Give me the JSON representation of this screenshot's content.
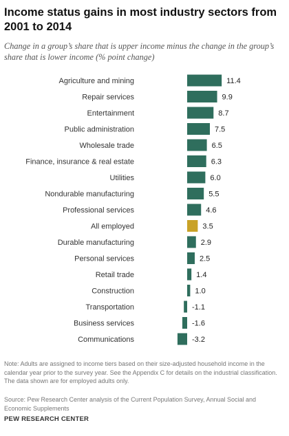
{
  "title": "Income status gains in most industry sectors from 2001 to 2014",
  "subtitle": "Change in a group’s share that is upper income minus the change in the group’s share that is lower income (% point change)",
  "note": "Note: Adults are assigned to income tiers based on their size-adjusted household income in the calendar year prior to the survey year. See the Appendix C for details on the industrial classification. The data shown are for employed adults only.",
  "source": "Source: Pew Research Center analysis of the Current Population Survey, Annual Social and Economic Supplements",
  "brand": "PEW RESEARCH CENTER",
  "colors": {
    "bar": "#2f6e5d",
    "highlight": "#c9a227"
  },
  "chart_data": {
    "type": "bar",
    "orientation": "horizontal",
    "categories": [
      "Agriculture and mining",
      "Repair services",
      "Entertainment",
      "Public administration",
      "Wholesale trade",
      "Finance, insurance & real estate",
      "Utilities",
      "Nondurable manufacturing",
      "Professional services",
      "All employed",
      "Durable manufacturing",
      "Personal services",
      "Retail trade",
      "Construction",
      "Transportation",
      "Business services",
      "Communications"
    ],
    "values": [
      11.4,
      9.9,
      8.7,
      7.5,
      6.5,
      6.3,
      6.0,
      5.5,
      4.6,
      3.5,
      2.9,
      2.5,
      1.4,
      1.0,
      -1.1,
      -1.6,
      -3.2
    ],
    "value_labels": [
      "11.4",
      "9.9",
      "8.7",
      "7.5",
      "6.5",
      "6.3",
      "6.0",
      "5.5",
      "4.6",
      "3.5",
      "2.9",
      "2.5",
      "1.4",
      "1.0",
      "-1.1",
      "-1.6",
      "-3.2"
    ],
    "highlight_category": "All employed",
    "title": "Income status gains in most industry sectors from 2001 to 2014",
    "xlabel": "",
    "ylabel": "",
    "grid": false,
    "legend": "none"
  }
}
